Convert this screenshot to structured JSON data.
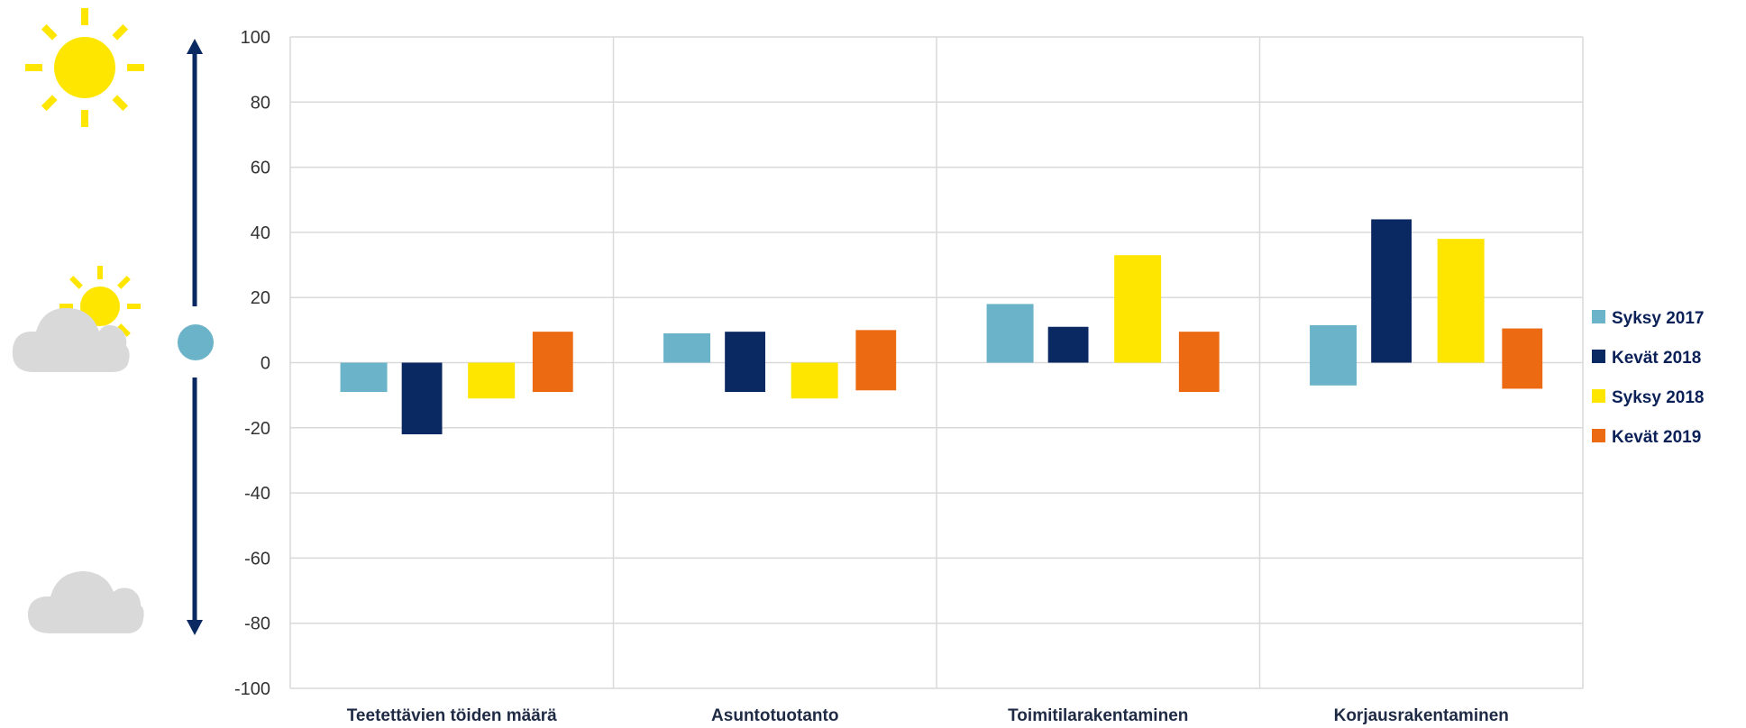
{
  "chart_data": {
    "type": "bar",
    "categories": [
      "Teetettävien töiden määrä",
      "Asuntotuotanto",
      "Toimitilarakentaminen",
      "Korjausrakentaminen"
    ],
    "ylim": [
      -100,
      100
    ],
    "yticks": [
      100,
      80,
      60,
      40,
      20,
      0,
      -20,
      -40,
      -60,
      -80,
      -100
    ],
    "grid": true,
    "legend_position": "right",
    "series": [
      {
        "name": "Syksy 2017",
        "color": "#6bb3c9",
        "values": [
          [
            -9,
            0
          ],
          [
            0,
            9
          ],
          [
            0,
            18
          ],
          [
            -7,
            11.5
          ]
        ]
      },
      {
        "name": "Kevät 2018",
        "color": "#0a2862",
        "values": [
          [
            -22,
            0
          ],
          [
            -9,
            9.5
          ],
          [
            0,
            11
          ],
          [
            0,
            44
          ]
        ]
      },
      {
        "name": "Syksy 2018",
        "color": "#ffe600",
        "values": [
          [
            -11,
            0
          ],
          [
            -11,
            0
          ],
          [
            0,
            33
          ],
          [
            0,
            38
          ]
        ]
      },
      {
        "name": "Kevät 2019",
        "color": "#ec6a12",
        "values": [
          [
            -9,
            9.5
          ],
          [
            -8.5,
            10
          ],
          [
            -9,
            9.5
          ],
          [
            -8,
            10.5
          ]
        ]
      }
    ]
  },
  "indicator": {
    "top_icon": "sun-icon",
    "middle_icon": "sun-behind-cloud-icon",
    "bottom_icon": "cloud-icon",
    "arrow_color": "#0a2862",
    "marker_color": "#6bb3c9"
  }
}
